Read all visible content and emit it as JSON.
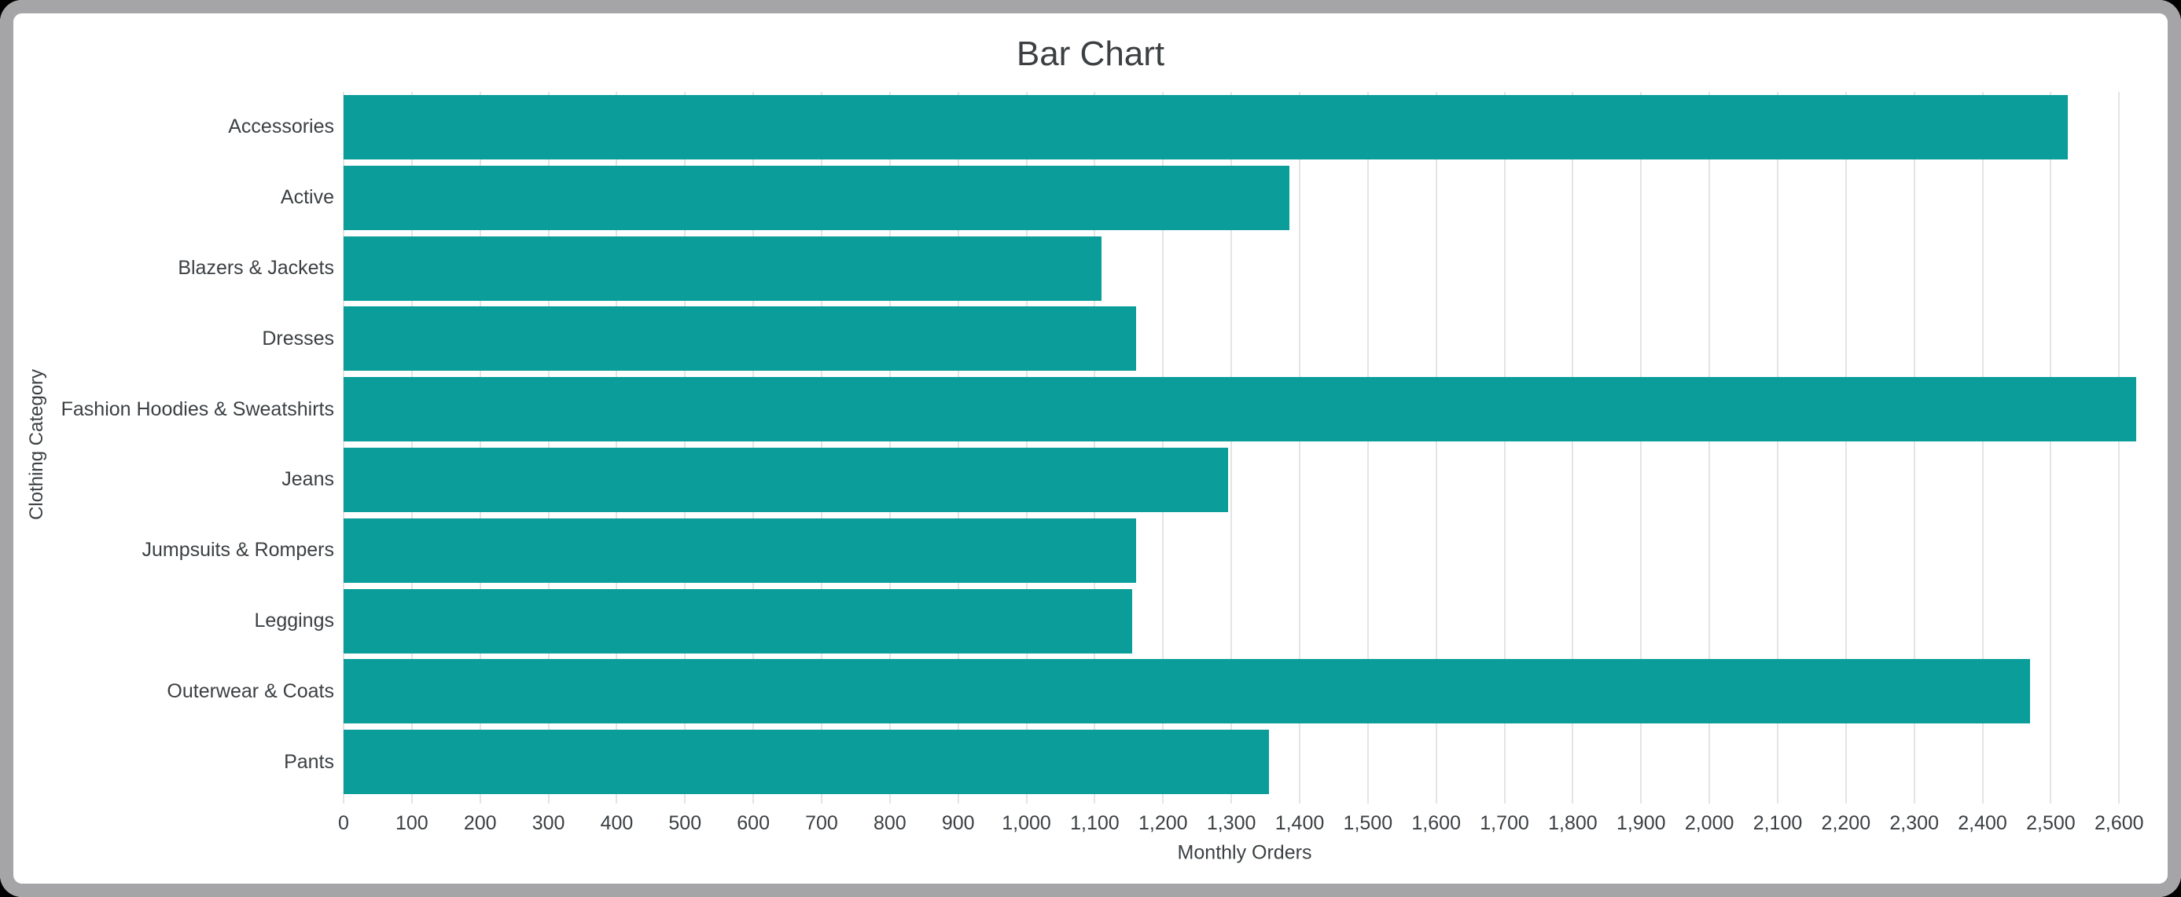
{
  "window": {
    "card_background": "#ffffff",
    "frame_color": "#a5a5a7",
    "corner_background": "#000000"
  },
  "chart_data": {
    "type": "bar",
    "orientation": "horizontal",
    "title": "Bar Chart",
    "xlabel": "Monthly Orders",
    "ylabel": "Clothing Category",
    "categories": [
      "Accessories",
      "Active",
      "Blazers & Jackets",
      "Dresses",
      "Fashion Hoodies & Sweatshirts",
      "Jeans",
      "Jumpsuits & Rompers",
      "Leggings",
      "Outerwear & Coats",
      "Pants"
    ],
    "values": [
      2525,
      1385,
      1110,
      1160,
      2625,
      1295,
      1160,
      1155,
      2470,
      1355
    ],
    "xlim": [
      0,
      2640
    ],
    "x_tick_step": 100,
    "x_tick_labels": [
      "0",
      "100",
      "200",
      "300",
      "400",
      "500",
      "600",
      "700",
      "800",
      "900",
      "1,000",
      "1,100",
      "1,200",
      "1,300",
      "1,400",
      "1,500",
      "1,600",
      "1,700",
      "1,800",
      "1,900",
      "2,000",
      "2,100",
      "2,200",
      "2,300",
      "2,400",
      "2,500",
      "2,600"
    ],
    "bar_color": "#0a9d99",
    "gridline_color": "#e4e4e4",
    "text_color": "#3c4043",
    "grid": true,
    "legend": false
  }
}
